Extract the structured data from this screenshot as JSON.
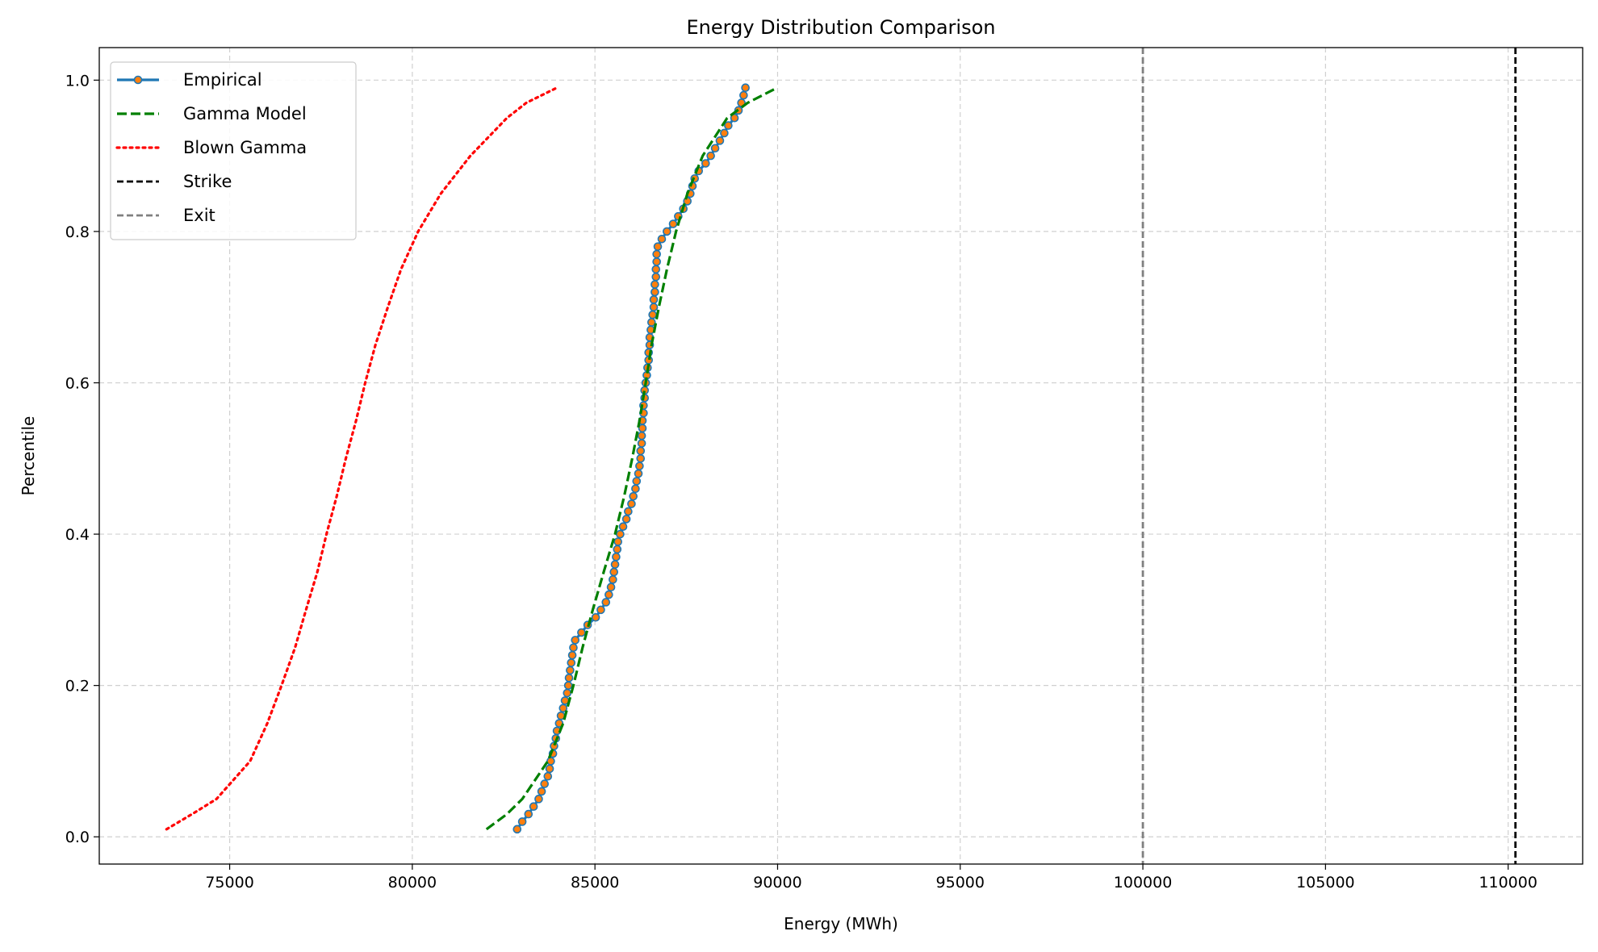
{
  "chart_data": {
    "type": "line",
    "title": "Energy Distribution Comparison",
    "x_label": "Energy (MWh)",
    "y_label": "Percentile",
    "xlim": [
      71430,
      112040
    ],
    "ylim": [
      -0.036,
      1.043
    ],
    "xticks": [
      75000,
      80000,
      85000,
      90000,
      95000,
      100000,
      105000,
      110000
    ],
    "yticks": [
      {
        "value": 0,
        "label": "0.0"
      },
      0.2,
      0.4,
      0.6,
      0.8,
      {
        "value": 1,
        "label": "1.0"
      }
    ],
    "grid": true,
    "legend": "upper left",
    "series": [
      {
        "name": "Empirical",
        "color": "#1f77b4",
        "style": "solid",
        "marker_color": "#ff7f0e",
        "x": [
          82870,
          83010,
          83180,
          83320,
          83460,
          83540,
          83620,
          83710,
          83760,
          83790,
          83850,
          83880,
          83930,
          83960,
          84020,
          84070,
          84130,
          84180,
          84240,
          84270,
          84290,
          84320,
          84350,
          84380,
          84410,
          84460,
          84630,
          84800,
          85020,
          85160,
          85300,
          85380,
          85440,
          85490,
          85520,
          85550,
          85580,
          85610,
          85630,
          85690,
          85770,
          85860,
          85910,
          86000,
          86050,
          86110,
          86140,
          86190,
          86220,
          86250,
          86250,
          86280,
          86280,
          86300,
          86300,
          86330,
          86330,
          86360,
          86360,
          86390,
          86420,
          86440,
          86470,
          86470,
          86500,
          86500,
          86530,
          86550,
          86580,
          86610,
          86610,
          86640,
          86640,
          86670,
          86670,
          86690,
          86690,
          86720,
          86830,
          86970,
          87140,
          87280,
          87420,
          87530,
          87610,
          87670,
          87730,
          87840,
          88030,
          88170,
          88290,
          88420,
          88540,
          88650,
          88820,
          88930,
          89010,
          89070,
          89120
        ],
        "values": [
          0.01,
          0.02,
          0.03,
          0.04,
          0.05,
          0.06,
          0.07,
          0.08,
          0.09,
          0.1,
          0.11,
          0.12,
          0.13,
          0.14,
          0.15,
          0.16,
          0.17,
          0.18,
          0.19,
          0.2,
          0.21,
          0.22,
          0.23,
          0.24,
          0.25,
          0.26,
          0.27,
          0.28,
          0.29,
          0.3,
          0.31,
          0.32,
          0.33,
          0.34,
          0.35,
          0.36,
          0.37,
          0.38,
          0.39,
          0.4,
          0.41,
          0.42,
          0.43,
          0.44,
          0.45,
          0.46,
          0.47,
          0.48,
          0.49,
          0.5,
          0.51,
          0.52,
          0.53,
          0.54,
          0.55,
          0.56,
          0.57,
          0.58,
          0.59,
          0.6,
          0.61,
          0.62,
          0.63,
          0.64,
          0.65,
          0.66,
          0.67,
          0.68,
          0.69,
          0.7,
          0.71,
          0.72,
          0.73,
          0.74,
          0.75,
          0.76,
          0.77,
          0.78,
          0.79,
          0.8,
          0.81,
          0.82,
          0.83,
          0.84,
          0.85,
          0.86,
          0.87,
          0.88,
          0.89,
          0.9,
          0.91,
          0.92,
          0.93,
          0.94,
          0.95,
          0.96,
          0.97,
          0.98,
          0.99
        ]
      },
      {
        "name": "Gamma Model",
        "color": "#008000",
        "style": "dashed",
        "x": [
          82030,
          82590,
          83010,
          83710,
          84130,
          84410,
          84660,
          84940,
          85240,
          85550,
          85800,
          86020,
          86220,
          86390,
          86550,
          86750,
          86970,
          87220,
          87530,
          87950,
          88620,
          89180,
          89990
        ],
        "values": [
          0.01,
          0.03,
          0.05,
          0.1,
          0.15,
          0.2,
          0.25,
          0.3,
          0.35,
          0.4,
          0.45,
          0.5,
          0.55,
          0.6,
          0.65,
          0.7,
          0.75,
          0.8,
          0.85,
          0.9,
          0.95,
          0.97,
          0.99
        ]
      },
      {
        "name": "Blown Gamma",
        "color": "#ff0000",
        "style": "dotted",
        "x": [
          73270,
          73970,
          74640,
          75560,
          76030,
          76420,
          76790,
          77090,
          77400,
          77650,
          77930,
          78180,
          78460,
          78710,
          78990,
          79330,
          79690,
          80160,
          80780,
          81590,
          82590,
          83120,
          83960
        ],
        "values": [
          0.01,
          0.03,
          0.05,
          0.1,
          0.15,
          0.2,
          0.25,
          0.3,
          0.35,
          0.4,
          0.45,
          0.5,
          0.55,
          0.6,
          0.65,
          0.7,
          0.75,
          0.8,
          0.85,
          0.9,
          0.95,
          0.97,
          0.99
        ]
      }
    ],
    "reference_lines": [
      {
        "name": "Strike",
        "color": "#000000",
        "value": 110200
      },
      {
        "name": "Exit",
        "color": "#808080",
        "value": 100000
      }
    ]
  }
}
